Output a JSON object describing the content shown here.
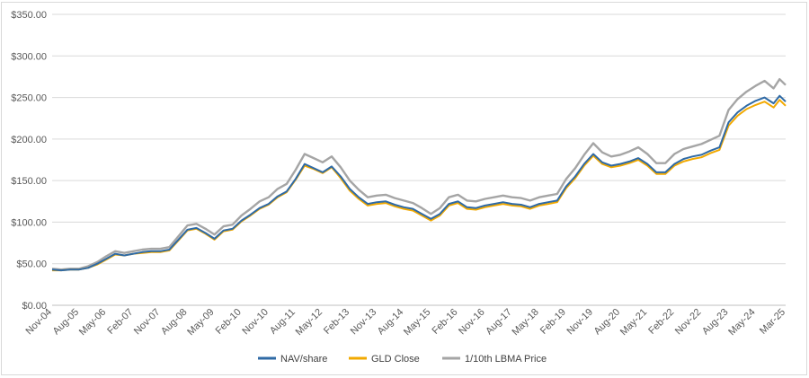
{
  "chart_data": {
    "type": "line",
    "title": "",
    "xlabel": "",
    "ylabel": "",
    "ylim": [
      0,
      350
    ],
    "y_ticks": [
      0,
      50,
      100,
      150,
      200,
      250,
      300,
      350
    ],
    "y_tick_labels": [
      "$0.00",
      "$50.00",
      "$100.00",
      "$150.00",
      "$200.00",
      "$250.00",
      "$300.00",
      "$350.00"
    ],
    "x_tick_labels": [
      "Nov-04",
      "Aug-05",
      "May-06",
      "Feb-07",
      "Nov-07",
      "Aug-08",
      "May-09",
      "Feb-10",
      "Nov-10",
      "Aug-11",
      "May-12",
      "Feb-13",
      "Nov-13",
      "Aug-14",
      "May-15",
      "Feb-16",
      "Nov-16",
      "Aug-17",
      "May-18",
      "Feb-19",
      "Nov-19",
      "Aug-20",
      "May-21",
      "Feb-22",
      "Nov-22",
      "Aug-23",
      "May-24",
      "Mar-25"
    ],
    "x_range_months": [
      0,
      244
    ],
    "grid": true,
    "legend_position": "bottom",
    "x": [
      0,
      3,
      6,
      9,
      12,
      15,
      18,
      21,
      24,
      27,
      30,
      33,
      36,
      39,
      42,
      45,
      48,
      51,
      54,
      57,
      60,
      63,
      66,
      69,
      72,
      75,
      78,
      81,
      84,
      87,
      90,
      93,
      96,
      99,
      102,
      105,
      108,
      111,
      114,
      117,
      120,
      123,
      126,
      129,
      132,
      135,
      138,
      141,
      144,
      147,
      150,
      153,
      156,
      159,
      162,
      165,
      168,
      171,
      174,
      177,
      180,
      183,
      186,
      189,
      192,
      195,
      198,
      201,
      204,
      207,
      210,
      213,
      216,
      219,
      222,
      225,
      228,
      231,
      234,
      237,
      240,
      242,
      244
    ],
    "series": [
      {
        "name": "NAV/share",
        "color": "#2f6aa5",
        "values": [
          43,
          42,
          43,
          43,
          45,
          50,
          56,
          62,
          60,
          62,
          64,
          65,
          65,
          67,
          79,
          91,
          93,
          87,
          80,
          90,
          92,
          102,
          109,
          117,
          122,
          131,
          137,
          152,
          170,
          165,
          160,
          167,
          155,
          140,
          130,
          122,
          124,
          125,
          121,
          118,
          116,
          110,
          104,
          110,
          122,
          125,
          118,
          117,
          120,
          122,
          124,
          122,
          121,
          118,
          122,
          124,
          126,
          143,
          155,
          170,
          182,
          172,
          168,
          170,
          173,
          177,
          170,
          160,
          160,
          170,
          176,
          179,
          181,
          186,
          190,
          220,
          232,
          240,
          246,
          250,
          243,
          252,
          245
        ]
      },
      {
        "name": "GLD Close",
        "color": "#f2a900",
        "values": [
          42,
          42,
          43,
          43,
          45,
          49,
          55,
          61,
          60,
          62,
          63,
          64,
          64,
          66,
          78,
          90,
          92,
          86,
          79,
          89,
          91,
          101,
          108,
          116,
          121,
          130,
          136,
          151,
          168,
          164,
          159,
          166,
          153,
          138,
          128,
          120,
          122,
          123,
          119,
          116,
          114,
          108,
          102,
          108,
          120,
          123,
          116,
          115,
          118,
          120,
          122,
          120,
          119,
          116,
          120,
          122,
          124,
          141,
          153,
          168,
          180,
          170,
          166,
          168,
          171,
          175,
          168,
          158,
          158,
          168,
          173,
          176,
          178,
          183,
          187,
          216,
          228,
          236,
          241,
          245,
          238,
          247,
          240
        ]
      },
      {
        "name": "1/10th LBMA Price",
        "color": "#a5a5a5",
        "values": [
          44,
          43,
          44,
          44,
          47,
          52,
          59,
          65,
          63,
          65,
          67,
          68,
          68,
          70,
          83,
          96,
          98,
          92,
          85,
          95,
          97,
          108,
          116,
          125,
          130,
          140,
          146,
          163,
          182,
          177,
          172,
          179,
          166,
          150,
          139,
          130,
          132,
          133,
          129,
          126,
          123,
          117,
          110,
          117,
          130,
          133,
          126,
          125,
          128,
          130,
          132,
          130,
          129,
          126,
          130,
          132,
          134,
          152,
          165,
          181,
          195,
          184,
          179,
          181,
          185,
          190,
          182,
          171,
          171,
          182,
          188,
          191,
          194,
          199,
          204,
          235,
          248,
          257,
          264,
          270,
          261,
          272,
          265
        ]
      }
    ]
  }
}
